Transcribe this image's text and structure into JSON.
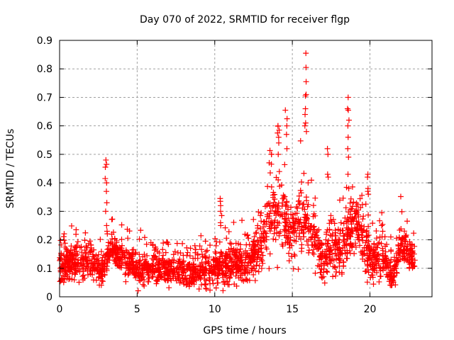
{
  "chart_data": {
    "type": "scatter",
    "title": "Day 070 of 2022, SRMTID for receiver flgp",
    "xlabel": "GPS time / hours",
    "ylabel": "SRMTID / TECUs",
    "xlim": [
      0,
      24
    ],
    "ylim": [
      0,
      0.9
    ],
    "xticks": [
      0,
      5,
      10,
      15,
      20
    ],
    "xtick_labels": [
      "0",
      "5",
      "10",
      "15",
      "20"
    ],
    "yticks": [
      0,
      0.1,
      0.2,
      0.3,
      0.4,
      0.5,
      0.6,
      0.7,
      0.8,
      0.9
    ],
    "ytick_labels": [
      "0",
      "0.1",
      "0.2",
      "0.3",
      "0.4",
      "0.5",
      "0.6",
      "0.7",
      "0.8",
      "0.9"
    ],
    "grid": true,
    "marker": "+",
    "marker_color": "#ff0000",
    "series": [
      {
        "name": "SRMTID",
        "envelope": [
          {
            "x": 0.0,
            "base": 0.11,
            "spread": 0.05
          },
          {
            "x": 1.0,
            "base": 0.12,
            "spread": 0.06
          },
          {
            "x": 2.0,
            "base": 0.13,
            "spread": 0.06
          },
          {
            "x": 2.8,
            "base": 0.09,
            "spread": 0.04
          },
          {
            "x": 3.3,
            "base": 0.18,
            "spread": 0.04
          },
          {
            "x": 4.0,
            "base": 0.14,
            "spread": 0.05
          },
          {
            "x": 5.0,
            "base": 0.09,
            "spread": 0.05
          },
          {
            "x": 6.0,
            "base": 0.11,
            "spread": 0.06
          },
          {
            "x": 7.0,
            "base": 0.1,
            "spread": 0.05
          },
          {
            "x": 8.0,
            "base": 0.09,
            "spread": 0.05
          },
          {
            "x": 9.0,
            "base": 0.09,
            "spread": 0.05
          },
          {
            "x": 10.0,
            "base": 0.1,
            "spread": 0.06
          },
          {
            "x": 11.0,
            "base": 0.11,
            "spread": 0.06
          },
          {
            "x": 12.0,
            "base": 0.12,
            "spread": 0.06
          },
          {
            "x": 12.8,
            "base": 0.16,
            "spread": 0.07
          },
          {
            "x": 13.5,
            "base": 0.27,
            "spread": 0.12
          },
          {
            "x": 14.2,
            "base": 0.33,
            "spread": 0.13
          },
          {
            "x": 14.8,
            "base": 0.22,
            "spread": 0.08
          },
          {
            "x": 15.5,
            "base": 0.28,
            "spread": 0.12
          },
          {
            "x": 16.2,
            "base": 0.22,
            "spread": 0.1
          },
          {
            "x": 17.0,
            "base": 0.13,
            "spread": 0.07
          },
          {
            "x": 17.5,
            "base": 0.18,
            "spread": 0.1
          },
          {
            "x": 18.2,
            "base": 0.16,
            "spread": 0.08
          },
          {
            "x": 18.8,
            "base": 0.26,
            "spread": 0.09
          },
          {
            "x": 19.5,
            "base": 0.22,
            "spread": 0.1
          },
          {
            "x": 20.0,
            "base": 0.14,
            "spread": 0.07
          },
          {
            "x": 21.0,
            "base": 0.12,
            "spread": 0.06
          },
          {
            "x": 21.5,
            "base": 0.07,
            "spread": 0.04
          },
          {
            "x": 22.0,
            "base": 0.19,
            "spread": 0.06
          },
          {
            "x": 22.8,
            "base": 0.13,
            "spread": 0.04
          }
        ],
        "spikes": [
          {
            "x": 3.0,
            "values": [
              0.48,
              0.465,
              0.455,
              0.415,
              0.4,
              0.37,
              0.33,
              0.3,
              0.25,
              0.23
            ]
          },
          {
            "x": 10.4,
            "values": [
              0.345,
              0.335,
              0.32,
              0.3,
              0.285,
              0.26,
              0.25
            ]
          },
          {
            "x": 14.1,
            "values": [
              0.6,
              0.585,
              0.575,
              0.56,
              0.54,
              0.5
            ]
          },
          {
            "x": 14.6,
            "values": [
              0.655,
              0.625,
              0.6,
              0.57,
              0.52
            ]
          },
          {
            "x": 15.85,
            "values": [
              0.855,
              0.805,
              0.755,
              0.71,
              0.705,
              0.66,
              0.64,
              0.61,
              0.6,
              0.58
            ]
          },
          {
            "x": 17.3,
            "values": [
              0.52,
              0.5,
              0.43,
              0.42
            ]
          },
          {
            "x": 18.6,
            "values": [
              0.7,
              0.66,
              0.655,
              0.62,
              0.6,
              0.56,
              0.52,
              0.49,
              0.43,
              0.38
            ]
          },
          {
            "x": 19.9,
            "values": [
              0.43,
              0.42,
              0.38,
              0.37,
              0.36
            ]
          },
          {
            "x": 20.8,
            "values": [
              0.295,
              0.25,
              0.23,
              0.21
            ]
          }
        ],
        "start_hour": 0.0,
        "end_hour": 22.9,
        "sample_count": 2200
      }
    ]
  }
}
